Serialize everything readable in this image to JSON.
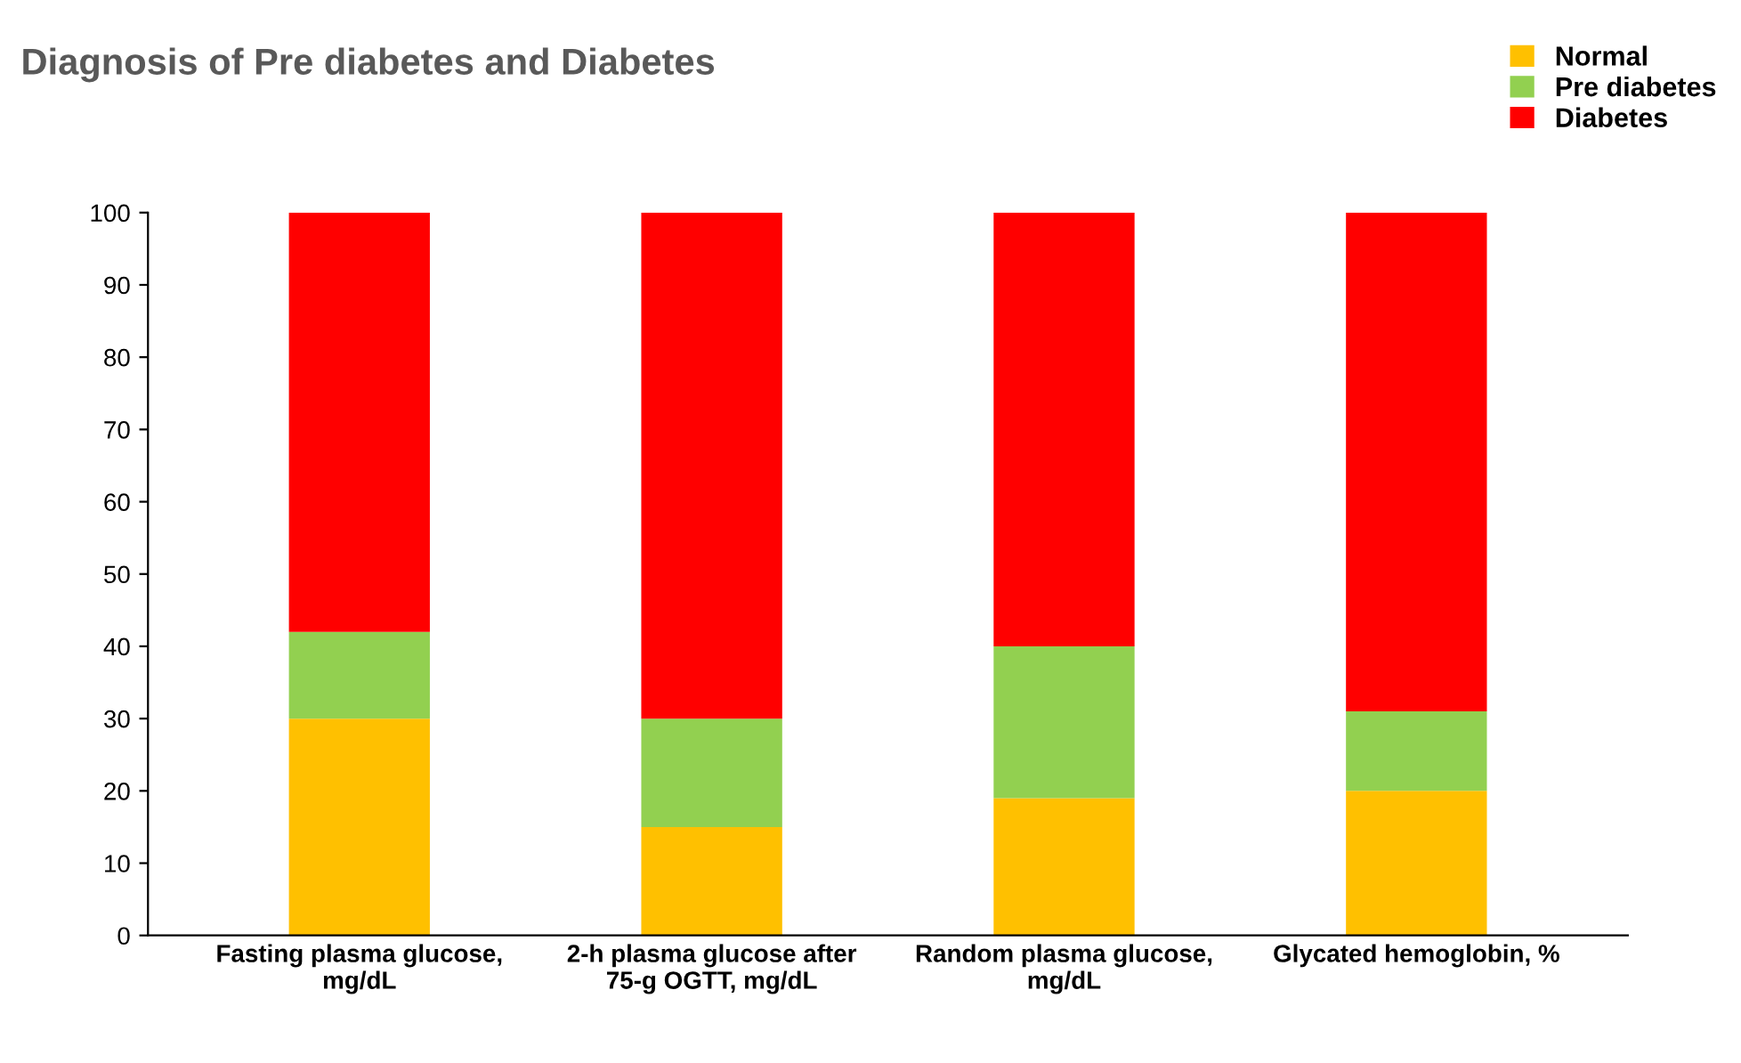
{
  "chart_data": {
    "type": "bar",
    "title": "Diagnosis of Pre diabetes and Diabetes",
    "categories": [
      "Fasting plasma glucose, mg/dL",
      "2-h plasma glucose after 75-g OGTT, mg/dL",
      "Random plasma glucose, mg/dL",
      "Glycated hemoglobin, %"
    ],
    "stacked": true,
    "series": [
      {
        "name": "Normal",
        "color": "#ffc000",
        "values": [
          30,
          15,
          19,
          20
        ]
      },
      {
        "name": "Pre diabetes",
        "color": "#92d050",
        "values": [
          12,
          15,
          21,
          11
        ]
      },
      {
        "name": "Diabetes",
        "color": "#ff0000",
        "values": [
          58,
          70,
          60,
          69
        ]
      }
    ],
    "ylim": [
      0,
      100
    ],
    "yticks": [
      0,
      10,
      20,
      30,
      40,
      50,
      60,
      70,
      80,
      90,
      100
    ],
    "grid": false,
    "legend": "top right"
  }
}
